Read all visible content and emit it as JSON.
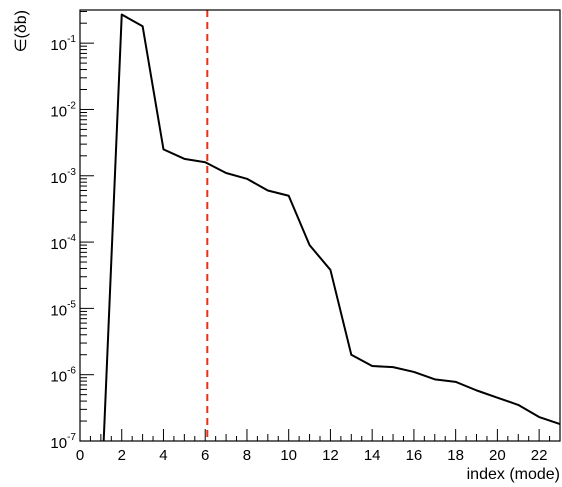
{
  "chart_data": {
    "type": "line",
    "title": "",
    "xlabel": "index (mode)",
    "ylabel": "∈(δb)",
    "xlim": [
      0,
      23
    ],
    "ylim_exponents": [
      -7,
      -0.5
    ],
    "y_scale": "log",
    "grid": false,
    "x_tick_labels": [
      "0",
      "2",
      "4",
      "6",
      "8",
      "10",
      "12",
      "14",
      "16",
      "18",
      "20",
      "22"
    ],
    "y_tick_labels": [
      {
        "base": "10",
        "exp": "-7",
        "value": 1e-07
      },
      {
        "base": "10",
        "exp": "-6",
        "value": 1e-06
      },
      {
        "base": "10",
        "exp": "-5",
        "value": 1e-05
      },
      {
        "base": "10",
        "exp": "-4",
        "value": 0.0001
      },
      {
        "base": "10",
        "exp": "-3",
        "value": 0.001
      },
      {
        "base": "10",
        "exp": "-2",
        "value": 0.01
      },
      {
        "base": "10",
        "exp": "-1",
        "value": 0.1
      }
    ],
    "series": [
      {
        "color": "#000000",
        "x": [
          1,
          2,
          3,
          4,
          5,
          6,
          7,
          8,
          9,
          10,
          11,
          12,
          13,
          14,
          15,
          16,
          17,
          18,
          19,
          20,
          21,
          22,
          23
        ],
        "y": [
          1e-08,
          0.27,
          0.18,
          0.0025,
          0.0018,
          0.0016,
          0.0011,
          0.0009,
          0.0006,
          0.0005,
          9e-05,
          3.8e-05,
          2e-06,
          1.35e-06,
          1.3e-06,
          1.1e-06,
          8.5e-07,
          7.8e-07,
          5.8e-07,
          4.5e-07,
          3.5e-07,
          2.3e-07,
          1.8e-07
        ]
      }
    ],
    "reference_line": {
      "x": 6.1,
      "color": "#e8311a",
      "style": "dashed"
    }
  }
}
